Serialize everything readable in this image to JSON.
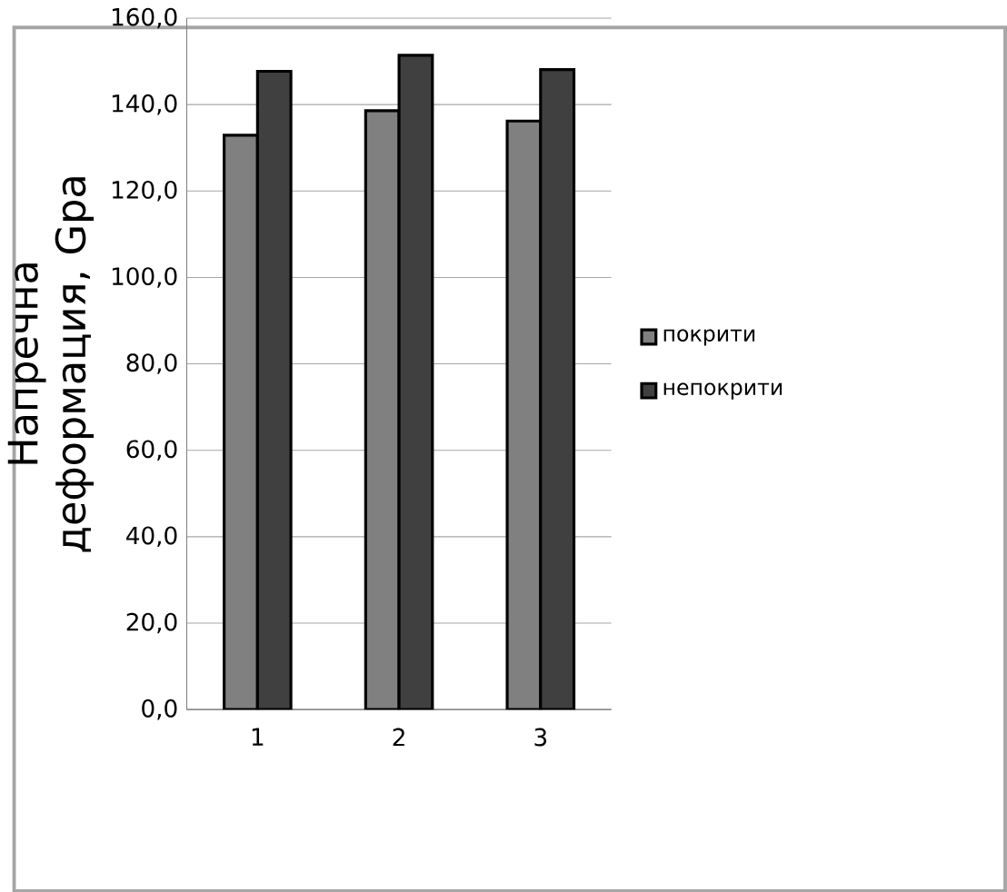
{
  "chart_data": {
    "type": "bar",
    "ylabel": "Напречна деформация, Gpa",
    "categories": [
      "1",
      "2",
      "3"
    ],
    "series": [
      {
        "name": "покрити",
        "color": "#808080",
        "values": [
          132.9,
          138.6,
          136.2
        ]
      },
      {
        "name": "непокрити",
        "color": "#404040",
        "values": [
          147.7,
          151.4,
          148.1
        ]
      }
    ],
    "ylim": [
      0,
      160
    ],
    "yticks": [
      {
        "value": 0,
        "label": "0,0"
      },
      {
        "value": 20,
        "label": "20,0"
      },
      {
        "value": 40,
        "label": "40,0"
      },
      {
        "value": 60,
        "label": "60,0"
      },
      {
        "value": 80,
        "label": "80,0"
      },
      {
        "value": 100,
        "label": "100,0"
      },
      {
        "value": 120,
        "label": "120,0"
      },
      {
        "value": 140,
        "label": "140,0"
      },
      {
        "value": 160,
        "label": "160,0"
      }
    ],
    "grid": "y",
    "legend": "right"
  }
}
